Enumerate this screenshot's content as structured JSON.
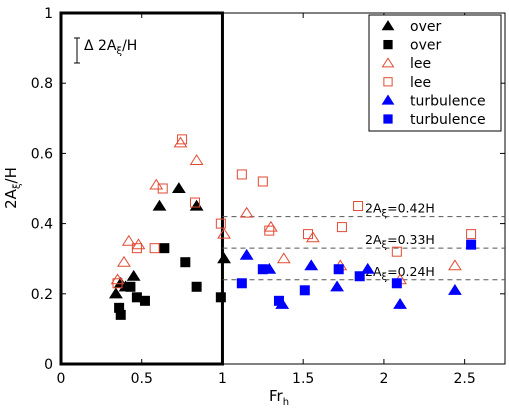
{
  "chart_data": {
    "type": "scatter",
    "xlim": [
      0,
      2.75
    ],
    "ylim": [
      0,
      1
    ],
    "xticks": [
      0,
      0.5,
      1,
      1.5,
      2,
      2.5
    ],
    "yticks": [
      0,
      0.2,
      0.4,
      0.6,
      0.8,
      1
    ],
    "xtick_labels": [
      "0",
      "0.5",
      "1",
      "1.5",
      "2",
      "2.5"
    ],
    "ytick_labels": [
      "0",
      "0.2",
      "0.4",
      "0.6",
      "0.8",
      "1"
    ],
    "xlabel": {
      "main": "Fr",
      "sub": "h"
    },
    "ylabel": {
      "pre": "2A",
      "sub": "ξ",
      "post": "/H"
    },
    "error_bar_label": {
      "pre": "Δ 2A",
      "sub": "ξ",
      "post": "/H"
    },
    "divider_x": 1,
    "legend_position": "top-right",
    "series": [
      {
        "name": "over",
        "marker": "triangle-filled",
        "color": "#000000",
        "points": [
          [
            0.34,
            0.2
          ],
          [
            0.37,
            0.23
          ],
          [
            0.4,
            0.22
          ],
          [
            0.45,
            0.25
          ],
          [
            0.61,
            0.45
          ],
          [
            0.73,
            0.5
          ],
          [
            0.84,
            0.45
          ],
          [
            1.01,
            0.3
          ]
        ]
      },
      {
        "name": "over",
        "marker": "square-filled",
        "color": "#000000",
        "points": [
          [
            0.36,
            0.16
          ],
          [
            0.37,
            0.14
          ],
          [
            0.43,
            0.22
          ],
          [
            0.47,
            0.19
          ],
          [
            0.52,
            0.18
          ],
          [
            0.64,
            0.33
          ],
          [
            0.77,
            0.29
          ],
          [
            0.84,
            0.22
          ],
          [
            0.99,
            0.19
          ]
        ]
      },
      {
        "name": "lee",
        "marker": "triangle-open",
        "color": "#e24a33",
        "points": [
          [
            0.35,
            0.24
          ],
          [
            0.39,
            0.29
          ],
          [
            0.42,
            0.35
          ],
          [
            0.48,
            0.34
          ],
          [
            0.59,
            0.51
          ],
          [
            0.74,
            0.63
          ],
          [
            0.84,
            0.58
          ],
          [
            1.01,
            0.37
          ],
          [
            1.15,
            0.43
          ],
          [
            1.3,
            0.39
          ],
          [
            1.38,
            0.3
          ],
          [
            1.56,
            0.36
          ],
          [
            1.73,
            0.28
          ],
          [
            2.1,
            0.24
          ],
          [
            2.44,
            0.28
          ]
        ]
      },
      {
        "name": "lee",
        "marker": "square-open",
        "color": "#e24a33",
        "points": [
          [
            0.35,
            0.23
          ],
          [
            0.47,
            0.33
          ],
          [
            0.58,
            0.33
          ],
          [
            0.63,
            0.5
          ],
          [
            0.75,
            0.64
          ],
          [
            0.83,
            0.46
          ],
          [
            0.99,
            0.4
          ],
          [
            1.12,
            0.54
          ],
          [
            1.25,
            0.52
          ],
          [
            1.29,
            0.38
          ],
          [
            1.53,
            0.37
          ],
          [
            1.74,
            0.39
          ],
          [
            1.84,
            0.45
          ],
          [
            2.08,
            0.32
          ],
          [
            2.54,
            0.37
          ]
        ]
      },
      {
        "name": "turbulence",
        "marker": "triangle-filled",
        "color": "#0000ff",
        "points": [
          [
            1.15,
            0.31
          ],
          [
            1.29,
            0.27
          ],
          [
            1.37,
            0.17
          ],
          [
            1.55,
            0.28
          ],
          [
            1.71,
            0.22
          ],
          [
            1.9,
            0.27
          ],
          [
            2.1,
            0.17
          ],
          [
            2.44,
            0.21
          ]
        ]
      },
      {
        "name": "turbulence",
        "marker": "square-filled",
        "color": "#0000ff",
        "points": [
          [
            1.12,
            0.23
          ],
          [
            1.25,
            0.27
          ],
          [
            1.35,
            0.18
          ],
          [
            1.51,
            0.21
          ],
          [
            1.72,
            0.27
          ],
          [
            1.85,
            0.25
          ],
          [
            2.08,
            0.23
          ],
          [
            2.54,
            0.34
          ]
        ]
      }
    ],
    "reference_lines": [
      {
        "y": 0.42,
        "label": {
          "pre": "2A",
          "sub": "ξ",
          "post": "=0.42H"
        }
      },
      {
        "y": 0.33,
        "label": {
          "pre": "2A",
          "sub": "ξ",
          "post": "=0.33H"
        }
      },
      {
        "y": 0.24,
        "label": {
          "pre": "2A",
          "sub": "ξ",
          "post": "=0.24H"
        }
      }
    ]
  }
}
